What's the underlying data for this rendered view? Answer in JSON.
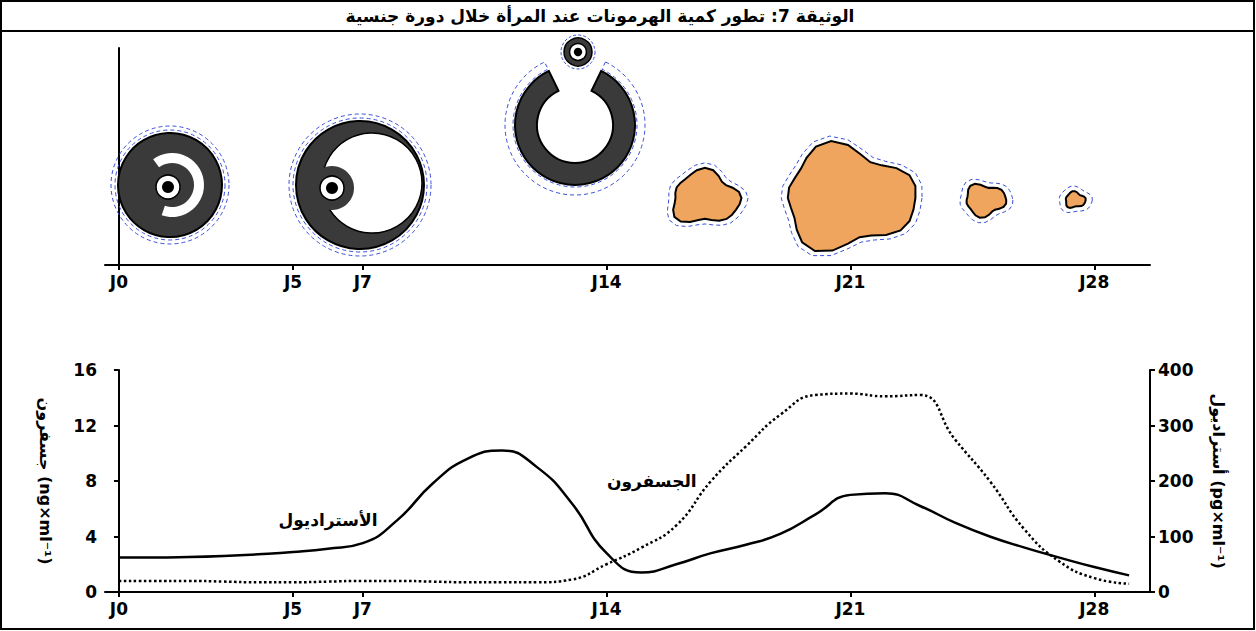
{
  "chart_data": {
    "type": "line",
    "title": "الوثيقة 7: تطور كمية الهرمونات عند المرأة خلال دورة جنسية",
    "x": [
      0,
      1,
      2,
      3,
      4,
      5,
      6,
      7,
      8,
      9,
      10,
      11,
      12,
      13,
      14,
      15,
      16,
      17,
      18,
      19,
      20,
      21,
      22,
      23,
      24,
      25,
      26,
      27,
      28,
      29
    ],
    "xlim": [
      -0.4,
      29.6
    ],
    "xticks": [
      {
        "value": 0,
        "label": "J0"
      },
      {
        "value": 5,
        "label": "J5"
      },
      {
        "value": 7,
        "label": "J7"
      },
      {
        "value": 14,
        "label": "J14"
      },
      {
        "value": 21,
        "label": "J21"
      },
      {
        "value": 28,
        "label": "J28"
      }
    ],
    "ylim": [
      0,
      16
    ],
    "yticks": [
      0,
      4,
      8,
      12,
      16
    ],
    "y2lim": [
      0,
      400
    ],
    "y2ticks": [
      0,
      100,
      200,
      300,
      400
    ],
    "ylabel": "جسفرون (ng×ml⁻¹)",
    "y2label": "أستراديول (pg×ml⁻¹)",
    "grid": false,
    "series": [
      {
        "name": "الجسفرون",
        "color": "#000000",
        "line_style": "dotted",
        "values": [
          0.8,
          0.8,
          0.8,
          0.75,
          0.7,
          0.7,
          0.75,
          0.8,
          0.8,
          0.75,
          0.7,
          0.7,
          0.7,
          0.9,
          2.0,
          3.2,
          4.8,
          8.0,
          10.5,
          12.8,
          14.2,
          14.3,
          14.1,
          14.2,
          11.0,
          8.0,
          4.5,
          2.2,
          1.0,
          0.6
        ]
      },
      {
        "name": "الأستراديول",
        "color": "#000000",
        "line_style": "solid",
        "axis": "y2",
        "values": [
          62,
          62,
          63,
          65,
          68,
          72,
          78,
          88,
          130,
          195,
          240,
          255,
          225,
          160,
          70,
          35,
          50,
          70,
          85,
          105,
          140,
          175,
          178,
          155,
          125,
          100,
          80,
          62,
          45,
          30
        ]
      }
    ]
  }
}
